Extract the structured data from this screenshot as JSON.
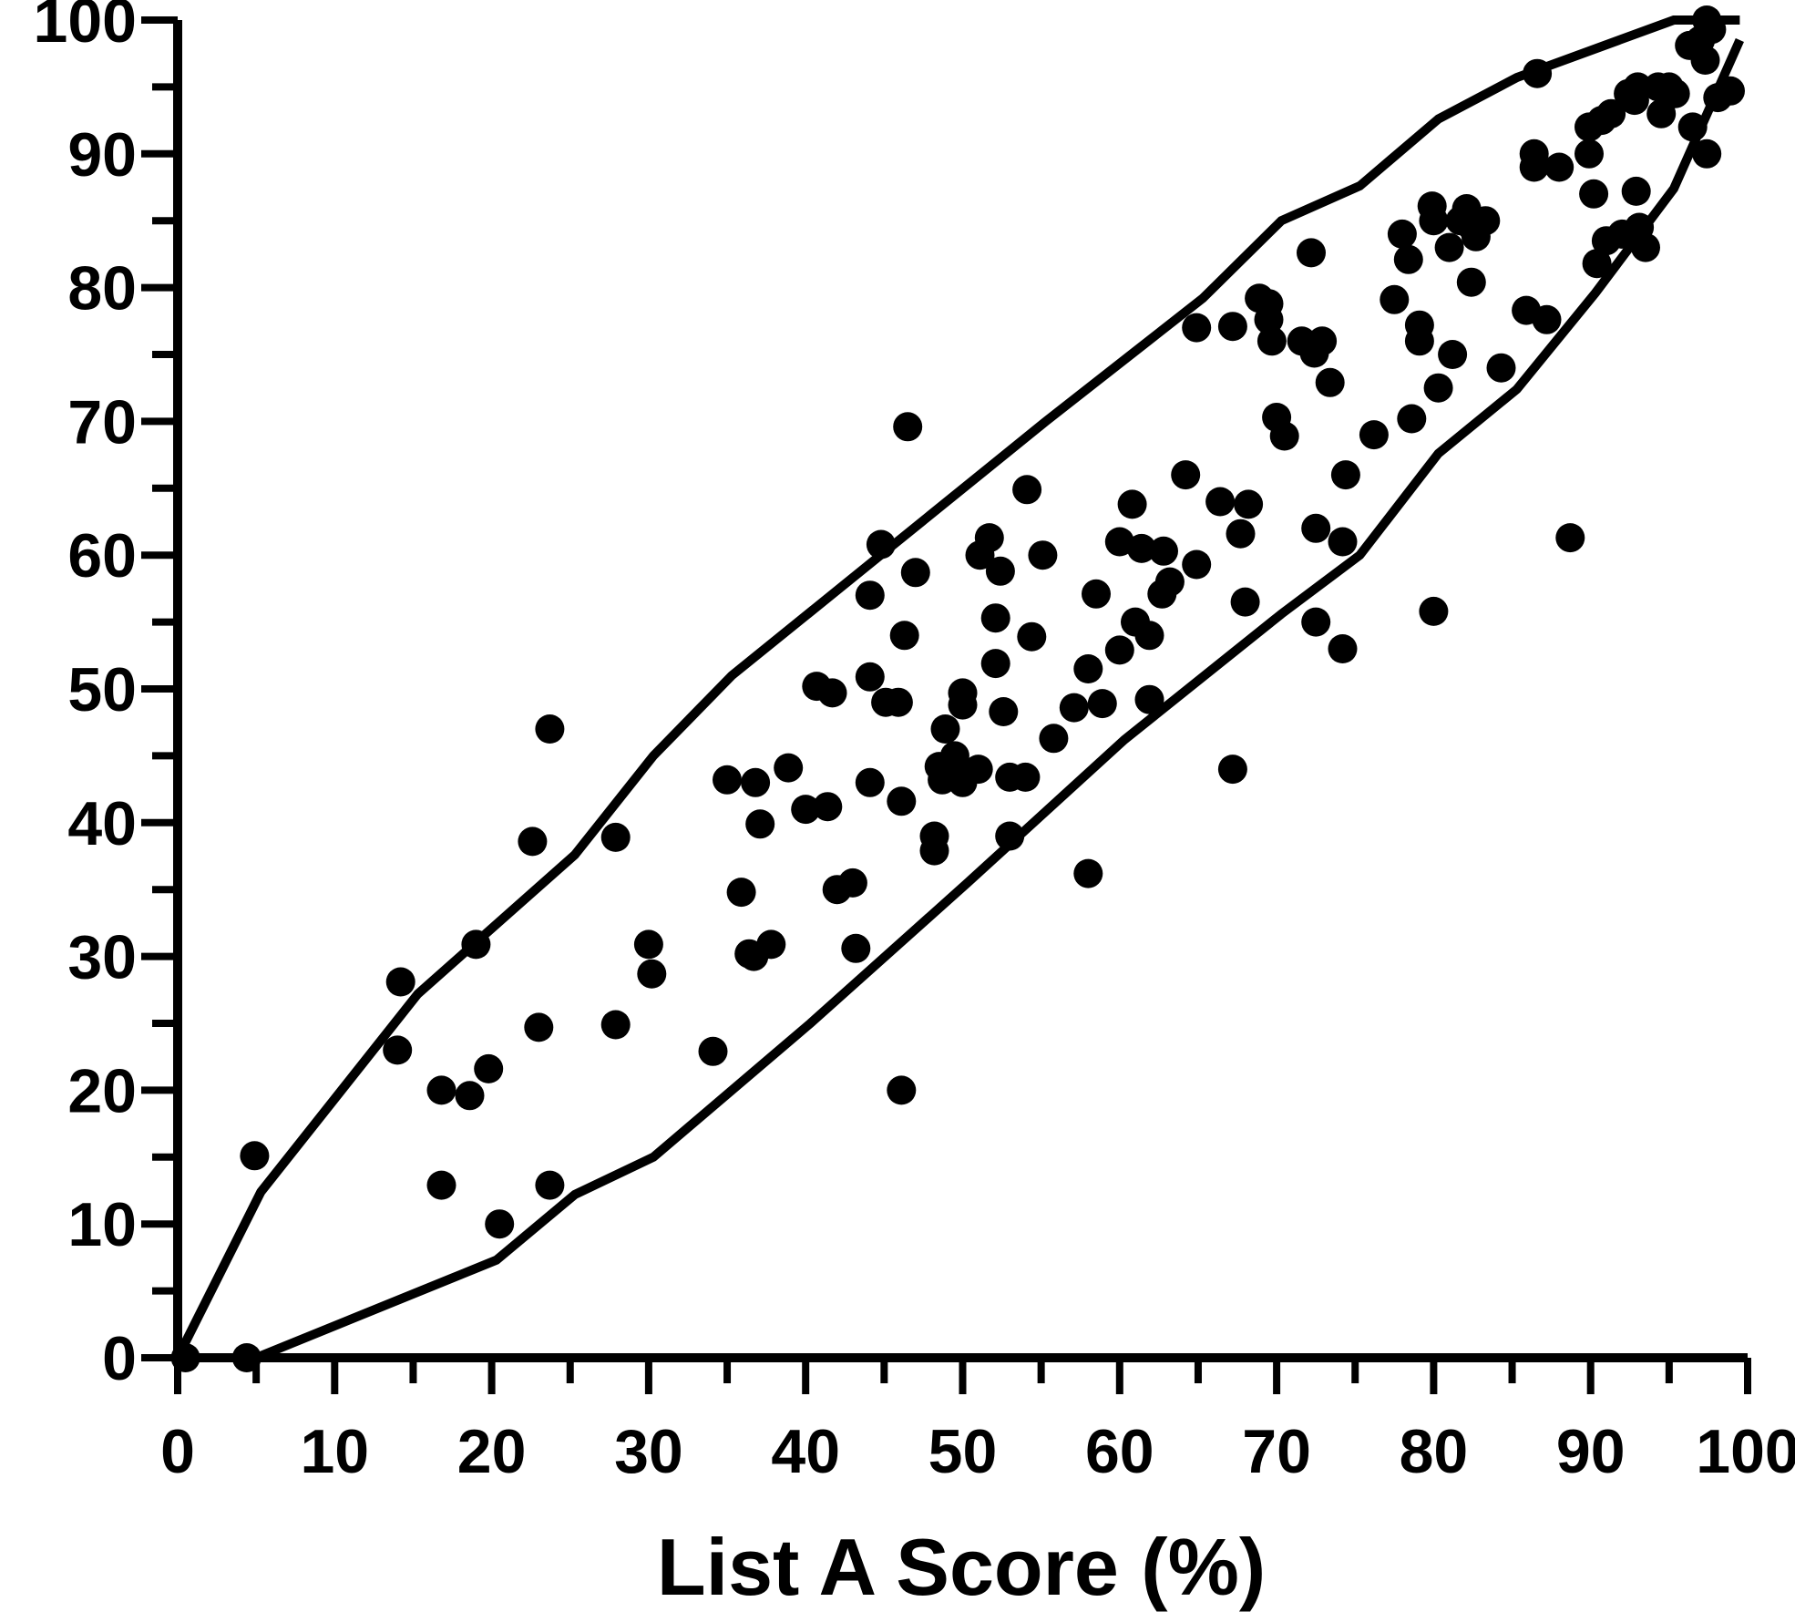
{
  "chart_data": {
    "type": "scatter",
    "title": "",
    "xlabel": "List A Score (%)",
    "ylabel": "",
    "xlim": [
      0,
      100
    ],
    "ylim": [
      0,
      100
    ],
    "x_ticks": [
      "0",
      "10",
      "20",
      "30",
      "40",
      "50",
      "60",
      "70",
      "80",
      "90",
      "100"
    ],
    "y_ticks": [
      "0",
      "10",
      "20",
      "30",
      "40",
      "50",
      "60",
      "70",
      "80",
      "90",
      "100"
    ],
    "x_minor_step": 5,
    "y_minor_step": 5,
    "grid": false,
    "legend": "none",
    "colors": {
      "marker": "#000000",
      "line": "#000000"
    },
    "upper_bound": [
      [
        0,
        0
      ],
      [
        5.3,
        12.4
      ],
      [
        15.3,
        27.2
      ],
      [
        25.3,
        37.6
      ],
      [
        30.3,
        45.0
      ],
      [
        35.3,
        51.0
      ],
      [
        45.3,
        60.5
      ],
      [
        55.3,
        70.0
      ],
      [
        65.3,
        79.2
      ],
      [
        70.3,
        85.0
      ],
      [
        75.3,
        87.6
      ],
      [
        80.3,
        92.6
      ],
      [
        85.3,
        95.7
      ],
      [
        95.3,
        100.0
      ],
      [
        99.5,
        100.0
      ]
    ],
    "lower_bound": [
      [
        0,
        0
      ],
      [
        5.0,
        0
      ],
      [
        20.3,
        7.3
      ],
      [
        25.3,
        12.2
      ],
      [
        30.3,
        15.0
      ],
      [
        40.3,
        25.0
      ],
      [
        50.3,
        35.5
      ],
      [
        60.3,
        46.2
      ],
      [
        70.3,
        55.6
      ],
      [
        75.3,
        60.0
      ],
      [
        80.3,
        67.6
      ],
      [
        85.3,
        72.4
      ],
      [
        90.3,
        79.6
      ],
      [
        95.3,
        87.4
      ],
      [
        99.5,
        98.5
      ]
    ],
    "points": [
      [
        0.5,
        0
      ],
      [
        4.4,
        0
      ],
      [
        4.9,
        15.1
      ],
      [
        14.2,
        28.1
      ],
      [
        14.0,
        23.0
      ],
      [
        16.8,
        20.0
      ],
      [
        16.8,
        12.9
      ],
      [
        18.6,
        19.6
      ],
      [
        19.0,
        30.9
      ],
      [
        19.8,
        21.6
      ],
      [
        20.5,
        10.0
      ],
      [
        22.6,
        38.6
      ],
      [
        23.0,
        24.7
      ],
      [
        23.7,
        47.0
      ],
      [
        23.7,
        12.9
      ],
      [
        27.9,
        38.9
      ],
      [
        27.9,
        24.9
      ],
      [
        30.0,
        30.9
      ],
      [
        30.2,
        28.7
      ],
      [
        34.1,
        22.9
      ],
      [
        35.0,
        43.2
      ],
      [
        35.9,
        34.8
      ],
      [
        36.4,
        30.2
      ],
      [
        36.7,
        30.0
      ],
      [
        36.8,
        43.0
      ],
      [
        37.1,
        39.9
      ],
      [
        37.8,
        30.9
      ],
      [
        38.9,
        44.1
      ],
      [
        40.0,
        41.0
      ],
      [
        40.7,
        50.2
      ],
      [
        41.4,
        41.2
      ],
      [
        41.7,
        49.7
      ],
      [
        42.0,
        35.0
      ],
      [
        43.0,
        35.5
      ],
      [
        43.2,
        30.6
      ],
      [
        44.1,
        57.0
      ],
      [
        44.1,
        50.9
      ],
      [
        44.1,
        43.0
      ],
      [
        44.8,
        60.8
      ],
      [
        45.1,
        49.0
      ],
      [
        45.9,
        49.0
      ],
      [
        46.1,
        41.6
      ],
      [
        46.3,
        54.0
      ],
      [
        46.1,
        20.0
      ],
      [
        46.5,
        69.6
      ],
      [
        47.0,
        58.7
      ],
      [
        48.2,
        39.0
      ],
      [
        48.2,
        37.9
      ],
      [
        48.5,
        44.2
      ],
      [
        48.7,
        43.2
      ],
      [
        48.9,
        47.0
      ],
      [
        49.5,
        45.0
      ],
      [
        49.8,
        43.6
      ],
      [
        50.0,
        49.7
      ],
      [
        50.0,
        48.8
      ],
      [
        50.0,
        43.0
      ],
      [
        51.0,
        44.0
      ],
      [
        51.1,
        60.0
      ],
      [
        51.7,
        61.3
      ],
      [
        52.1,
        55.3
      ],
      [
        52.1,
        51.9
      ],
      [
        52.4,
        58.8
      ],
      [
        52.6,
        48.3
      ],
      [
        53.0,
        39.0
      ],
      [
        53.0,
        43.4
      ],
      [
        54.0,
        43.4
      ],
      [
        54.1,
        64.9
      ],
      [
        54.4,
        53.9
      ],
      [
        55.1,
        60.0
      ],
      [
        55.8,
        46.3
      ],
      [
        57.1,
        48.6
      ],
      [
        58.0,
        51.5
      ],
      [
        58.0,
        36.2
      ],
      [
        58.5,
        57.1
      ],
      [
        58.9,
        48.9
      ],
      [
        60.0,
        61.0
      ],
      [
        60.0,
        52.9
      ],
      [
        60.8,
        63.8
      ],
      [
        61.0,
        55.0
      ],
      [
        61.4,
        60.5
      ],
      [
        61.9,
        54.0
      ],
      [
        61.9,
        49.2
      ],
      [
        62.8,
        60.3
      ],
      [
        62.7,
        57.1
      ],
      [
        63.2,
        58.0
      ],
      [
        64.2,
        66.0
      ],
      [
        64.9,
        59.3
      ],
      [
        64.9,
        77.0
      ],
      [
        66.4,
        64.0
      ],
      [
        67.2,
        77.1
      ],
      [
        67.2,
        44.0
      ],
      [
        67.7,
        61.6
      ],
      [
        68.0,
        56.5
      ],
      [
        68.2,
        63.8
      ],
      [
        68.9,
        79.2
      ],
      [
        69.5,
        78.8
      ],
      [
        69.5,
        77.6
      ],
      [
        69.7,
        76.0
      ],
      [
        70.0,
        70.3
      ],
      [
        70.5,
        68.9
      ],
      [
        71.6,
        76.0
      ],
      [
        72.2,
        82.6
      ],
      [
        72.4,
        75.1
      ],
      [
        72.5,
        62.0
      ],
      [
        72.5,
        55.0
      ],
      [
        72.9,
        76.0
      ],
      [
        73.4,
        72.9
      ],
      [
        74.2,
        53.0
      ],
      [
        74.2,
        61.0
      ],
      [
        74.4,
        66.0
      ],
      [
        76.2,
        69.0
      ],
      [
        77.5,
        79.1
      ],
      [
        78.0,
        84.0
      ],
      [
        78.4,
        82.1
      ],
      [
        78.6,
        70.2
      ],
      [
        79.1,
        77.2
      ],
      [
        79.1,
        76.0
      ],
      [
        79.9,
        86.1
      ],
      [
        80.0,
        85.0
      ],
      [
        80.0,
        55.8
      ],
      [
        80.3,
        72.5
      ],
      [
        81.0,
        83.0
      ],
      [
        81.2,
        75.0
      ],
      [
        81.7,
        85.0
      ],
      [
        82.1,
        85.9
      ],
      [
        82.4,
        80.4
      ],
      [
        82.4,
        84.6
      ],
      [
        82.7,
        83.8
      ],
      [
        83.3,
        85.0
      ],
      [
        84.3,
        74.0
      ],
      [
        85.9,
        78.3
      ],
      [
        86.4,
        90.0
      ],
      [
        86.4,
        89.0
      ],
      [
        86.6,
        96.0
      ],
      [
        87.2,
        77.6
      ],
      [
        88.0,
        89.0
      ],
      [
        88.7,
        61.3
      ],
      [
        89.9,
        92.0
      ],
      [
        89.9,
        90.0
      ],
      [
        90.2,
        87.0
      ],
      [
        90.4,
        81.8
      ],
      [
        90.7,
        92.5
      ],
      [
        91.0,
        83.5
      ],
      [
        91.3,
        93.0
      ],
      [
        92.0,
        84.0
      ],
      [
        92.4,
        94.5
      ],
      [
        92.8,
        94.0
      ],
      [
        92.9,
        87.2
      ],
      [
        93.0,
        95.0
      ],
      [
        93.1,
        84.5
      ],
      [
        93.5,
        83.0
      ],
      [
        94.3,
        95.0
      ],
      [
        94.5,
        93.0
      ],
      [
        95.0,
        95.0
      ],
      [
        95.4,
        94.5
      ],
      [
        96.3,
        98.1
      ],
      [
        96.5,
        92.0
      ],
      [
        97.0,
        98.5
      ],
      [
        97.3,
        97.0
      ],
      [
        97.4,
        100.0
      ],
      [
        97.4,
        90.0
      ],
      [
        97.7,
        99.3
      ],
      [
        98.1,
        94.2
      ],
      [
        98.9,
        94.7
      ]
    ]
  }
}
